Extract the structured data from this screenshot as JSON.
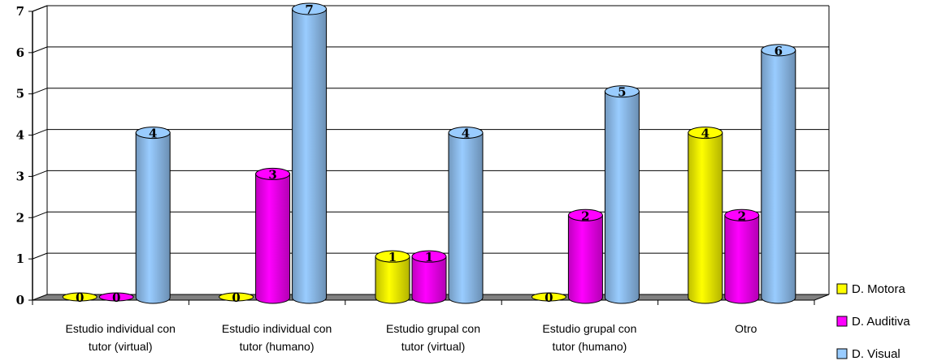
{
  "chart_data": {
    "type": "bar",
    "categories": [
      [
        "Estudio individual con",
        "tutor (virtual)"
      ],
      [
        "Estudio individual con",
        "tutor (humano)"
      ],
      [
        "Estudio grupal con",
        "tutor (virtual)"
      ],
      [
        "Estudio grupal con",
        "tutor (humano)"
      ],
      [
        "Otro"
      ]
    ],
    "series": [
      {
        "name": "D. Motora",
        "values": [
          0,
          0,
          1,
          0,
          4
        ],
        "color": "#ffff00"
      },
      {
        "name": "D. Auditiva",
        "values": [
          0,
          3,
          1,
          2,
          2
        ],
        "color": "#ff00ff"
      },
      {
        "name": "D. Visual",
        "values": [
          4,
          7,
          4,
          5,
          6
        ],
        "color": "#99ccff"
      }
    ],
    "ylim": [
      0,
      7
    ],
    "yticks": [
      0,
      1,
      2,
      3,
      4,
      5,
      6,
      7
    ],
    "grid": true,
    "legend_position": "bottom-right",
    "data_labels": true,
    "style": "3d-cylinder"
  }
}
